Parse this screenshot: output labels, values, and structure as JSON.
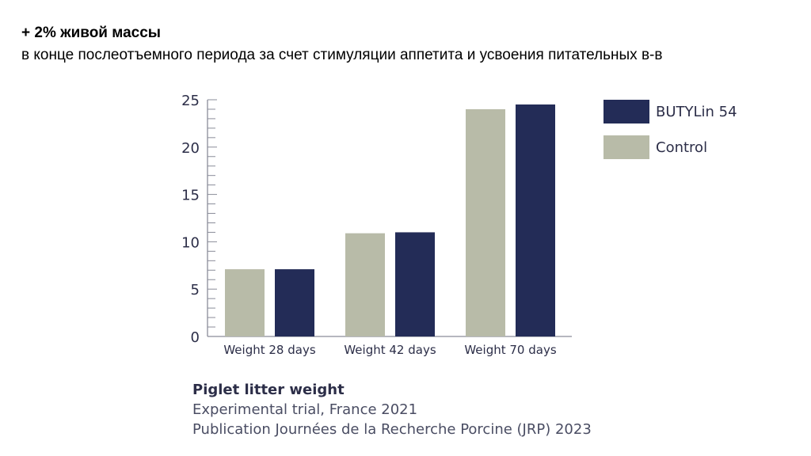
{
  "header": {
    "headline": "+ 2% живой массы",
    "subline": "в конце послеотъемного периода за счет стимуляции аппетита и усвоения питательных в-в"
  },
  "caption": {
    "title": "Piglet litter weight",
    "line1": "Experimental trial, France 2021",
    "line2": "Publication Journées de la Recherche Porcine (JRP) 2023"
  },
  "chart_data": {
    "type": "bar",
    "categories": [
      "Weight 28 days",
      "Weight 42 days",
      "Weight 70 days"
    ],
    "series": [
      {
        "name": "Control",
        "color": "#b8bba8",
        "values": [
          7.1,
          10.9,
          24.0
        ]
      },
      {
        "name": "BUTYLin 54",
        "color": "#232c57",
        "values": [
          7.1,
          11.0,
          24.5
        ]
      }
    ],
    "legend_order": [
      "BUTYLin 54",
      "Control"
    ],
    "legend_position": "right",
    "yticks": [
      0,
      5,
      10,
      15,
      20,
      25
    ],
    "ylim": [
      0,
      25
    ],
    "grid": false,
    "title": "",
    "xlabel": "",
    "ylabel": ""
  }
}
